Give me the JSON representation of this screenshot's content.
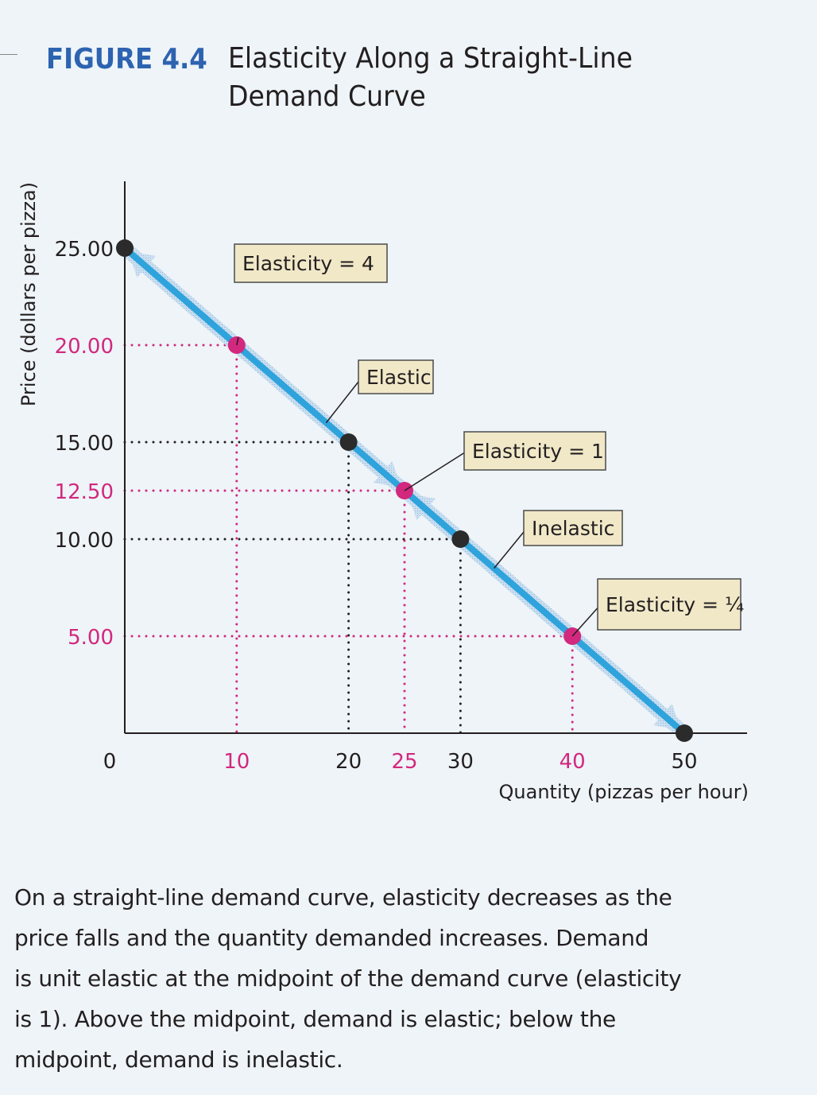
{
  "figure": {
    "label": "FIGURE 4.4",
    "title_line1": "Elasticity Along a Straight-Line",
    "title_line2": "Demand Curve"
  },
  "colors": {
    "accent_blue": "#2d63b0",
    "curve": "#2ea3dc",
    "magenta": "#d2287e",
    "black": "#231f20",
    "callout_bg": "#f1e8c8",
    "background": "#eef4f8"
  },
  "chart_data": {
    "type": "line",
    "title": "Elasticity Along a Straight-Line Demand Curve",
    "xlabel": "Quantity (pizzas per hour)",
    "ylabel": "Price (dollars per pizza)",
    "xlim": [
      0,
      50
    ],
    "ylim": [
      0,
      25
    ],
    "grid": false,
    "series": [
      {
        "name": "Demand",
        "x": [
          0,
          50
        ],
        "y": [
          25,
          0
        ]
      }
    ],
    "x_ticks": [
      {
        "value": 0,
        "label": "0",
        "color": "black"
      },
      {
        "value": 10,
        "label": "10",
        "color": "magenta"
      },
      {
        "value": 20,
        "label": "20",
        "color": "black"
      },
      {
        "value": 25,
        "label": "25",
        "color": "magenta"
      },
      {
        "value": 30,
        "label": "30",
        "color": "black"
      },
      {
        "value": 40,
        "label": "40",
        "color": "magenta"
      },
      {
        "value": 50,
        "label": "50",
        "color": "black"
      }
    ],
    "y_ticks": [
      {
        "value": 25,
        "label": "25.00",
        "color": "black"
      },
      {
        "value": 20,
        "label": "20.00",
        "color": "magenta"
      },
      {
        "value": 15,
        "label": "15.00",
        "color": "black"
      },
      {
        "value": 12.5,
        "label": "12.50",
        "color": "magenta"
      },
      {
        "value": 10,
        "label": "10.00",
        "color": "black"
      },
      {
        "value": 5,
        "label": "5.00",
        "color": "magenta"
      }
    ],
    "points": [
      {
        "x": 0,
        "y": 25,
        "color": "black",
        "guides": false
      },
      {
        "x": 10,
        "y": 20,
        "color": "magenta",
        "guides": true
      },
      {
        "x": 20,
        "y": 15,
        "color": "black",
        "guides": true
      },
      {
        "x": 25,
        "y": 12.5,
        "color": "magenta",
        "guides": true
      },
      {
        "x": 30,
        "y": 10,
        "color": "black",
        "guides": true
      },
      {
        "x": 40,
        "y": 5,
        "color": "magenta",
        "guides": true
      },
      {
        "x": 50,
        "y": 0,
        "color": "black",
        "guides": false
      }
    ],
    "annotations": [
      {
        "text": "Elasticity = 4",
        "points_to": [
          10,
          20
        ]
      },
      {
        "text": "Elastic",
        "points_to": [
          18,
          16
        ]
      },
      {
        "text": "Elasticity = 1",
        "points_to": [
          25,
          12.5
        ]
      },
      {
        "text": "Inelastic",
        "points_to": [
          33,
          8.5
        ]
      },
      {
        "text": "Elasticity = ¼",
        "points_to": [
          40,
          5
        ]
      }
    ],
    "arrows": [
      {
        "description": "elastic range arrow",
        "from": [
          25,
          12.5
        ],
        "to": [
          0,
          25
        ]
      },
      {
        "description": "elastic range arrow",
        "from": [
          0,
          25
        ],
        "to": [
          25,
          12.5
        ]
      },
      {
        "description": "inelastic range arrow",
        "from": [
          50,
          0
        ],
        "to": [
          25,
          12.5
        ]
      },
      {
        "description": "inelastic range arrow",
        "from": [
          25,
          12.5
        ],
        "to": [
          50,
          0
        ]
      }
    ]
  },
  "caption": {
    "line1": "On a straight-line demand curve, elasticity decreases as the",
    "line2": "price falls and the quantity demanded increases. Demand",
    "line3": "is unit elastic at the midpoint of the demand curve (elasticity",
    "line4": "is 1). Above the midpoint, demand is elastic; below the",
    "line5": "midpoint, demand is inelastic."
  }
}
